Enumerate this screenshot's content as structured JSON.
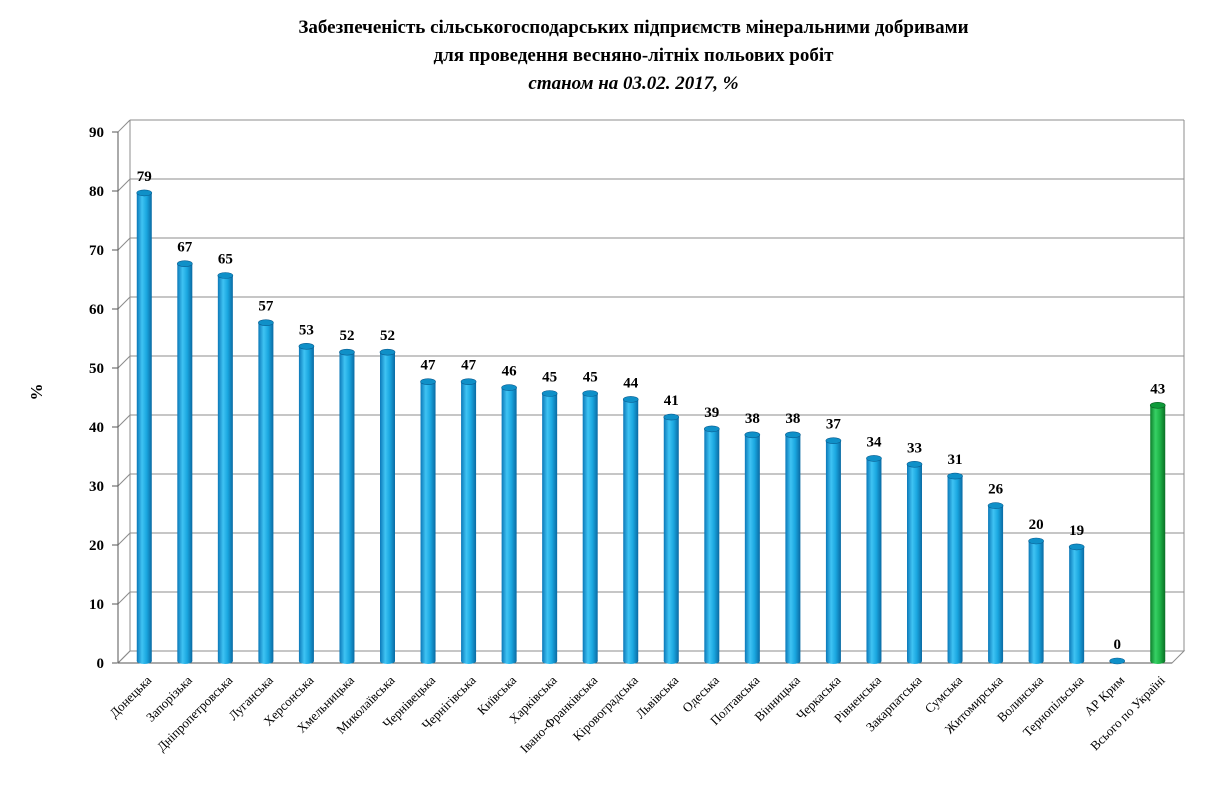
{
  "titles": {
    "line1": "Забезпеченість сільськогосподарських підприємств мінеральними добривами",
    "line2": "для проведення весняно-літніх польових робіт",
    "line3": "станом на 03.02. 2017, %"
  },
  "chart_data": {
    "type": "bar",
    "ylabel": "%",
    "xlabel": "",
    "ylim": [
      0,
      90
    ],
    "yticks": [
      0,
      10,
      20,
      30,
      40,
      50,
      60,
      70,
      80,
      90
    ],
    "grid": true,
    "categories": [
      "Донецька",
      "Запорізька",
      "Дніпропетровська",
      "Луганська",
      "Херсонська",
      "Хмельницька",
      "Миколаївська",
      "Чернівецька",
      "Чернігівська",
      "Київська",
      "Харківська",
      "Івано-Франківська",
      "Кіровоградська",
      "Львівська",
      "Одеська",
      "Полтавська",
      "Вінницька",
      "Черкаська",
      "Рівненська",
      "Закарпатська",
      "Сумська",
      "Житомирська",
      "Волинська",
      "Тернопільська",
      "АР Крим",
      "Всього по Україні"
    ],
    "values": [
      79,
      67,
      65,
      57,
      53,
      52,
      52,
      47,
      47,
      46,
      45,
      45,
      44,
      41,
      39,
      38,
      38,
      37,
      34,
      33,
      31,
      26,
      20,
      19,
      0,
      43
    ],
    "data_labels": [
      "79",
      "67",
      "65",
      "57",
      "53",
      "52",
      "52",
      "47",
      "47",
      "46",
      "45",
      "45",
      "44",
      "41",
      "39",
      "38",
      "38",
      "37",
      "34",
      "33",
      "31",
      "26",
      "20",
      "19",
      "0",
      "43"
    ],
    "colors": {
      "regions": "#1aa7e0",
      "total": "#1db347"
    }
  }
}
